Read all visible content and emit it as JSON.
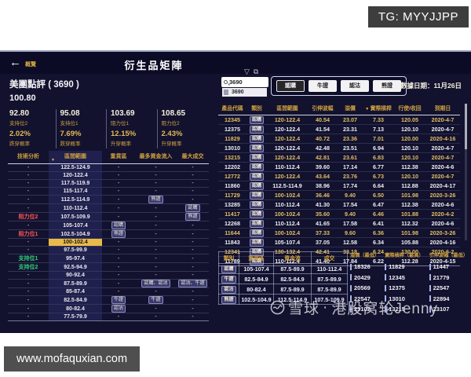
{
  "overlay": {
    "tg": "TG: MYYJJPP",
    "site": "www.mofaquxian.com",
    "watermark_brand": "雪球",
    "watermark_sep": "·",
    "watermark_name": "港股窝轮Jenny"
  },
  "header": {
    "back": "←",
    "overview": "概覽",
    "title": "衍生品矩陣",
    "funnel_icon": "▽",
    "snapshot_icon": "⧉"
  },
  "stock": {
    "name": "美團點評 ( 3690 )",
    "price": "100.80"
  },
  "levels": [
    {
      "value": "92.80",
      "label": "支持位2",
      "pct": "2.02%",
      "pct_label": "跌穿概率"
    },
    {
      "value": "95.08",
      "label": "支持位1",
      "pct": "7.69%",
      "pct_label": "跌穿概率"
    },
    {
      "value": "103.69",
      "label": "阻力位1",
      "pct": "12.15%",
      "pct_label": "升穿概率"
    },
    {
      "value": "108.65",
      "label": "阻力位2",
      "pct": "2.43%",
      "pct_label": "升穿概率"
    }
  ],
  "left_table": {
    "headers": [
      "技術分析",
      "區間範圍",
      "重貨區",
      "最多資金流入",
      "最大成交"
    ],
    "sort_icon": "▼",
    "rows": [
      {
        "tech": "-",
        "tech_type": "none",
        "range": "122.5-124.9",
        "heavy": [],
        "inflow": [],
        "volume": [],
        "highlight": false
      },
      {
        "tech": "-",
        "tech_type": "none",
        "range": "120-122.4",
        "heavy": [],
        "inflow": [],
        "volume": [],
        "highlight": false
      },
      {
        "tech": "-",
        "tech_type": "none",
        "range": "117.5-119.9",
        "heavy": [],
        "inflow": [],
        "volume": [],
        "highlight": false
      },
      {
        "tech": "-",
        "tech_type": "none",
        "range": "115-117.4",
        "heavy": [],
        "inflow": [],
        "volume": [],
        "highlight": false
      },
      {
        "tech": "-",
        "tech_type": "none",
        "range": "112.5-114.9",
        "heavy": [],
        "inflow": [
          "熊證"
        ],
        "volume": [],
        "highlight": false
      },
      {
        "tech": "-",
        "tech_type": "none",
        "range": "110-112.4",
        "heavy": [],
        "inflow": [],
        "volume": [
          "認購"
        ],
        "highlight": false
      },
      {
        "tech": "阻力位2",
        "tech_type": "resistance",
        "range": "107.5-109.9",
        "heavy": [],
        "inflow": [],
        "volume": [
          "熊證"
        ],
        "highlight": false
      },
      {
        "tech": "-",
        "tech_type": "none",
        "range": "105-107.4",
        "heavy": [
          "認購"
        ],
        "inflow": [],
        "volume": [],
        "highlight": false
      },
      {
        "tech": "阻力位1",
        "tech_type": "resistance",
        "range": "102.5-104.9",
        "heavy": [
          "熊證"
        ],
        "inflow": [],
        "volume": [],
        "highlight": false
      },
      {
        "tech": "-",
        "tech_type": "none",
        "range": "100-102.4",
        "heavy": [],
        "inflow": [],
        "volume": [],
        "highlight": true
      },
      {
        "tech": "-",
        "tech_type": "none",
        "range": "97.5-99.9",
        "heavy": [],
        "inflow": [],
        "volume": [],
        "highlight": false
      },
      {
        "tech": "支持位1",
        "tech_type": "support",
        "range": "95-97.4",
        "heavy": [],
        "inflow": [],
        "volume": [],
        "highlight": false
      },
      {
        "tech": "支持位2",
        "tech_type": "support",
        "range": "92.5-94.9",
        "heavy": [],
        "inflow": [],
        "volume": [],
        "highlight": false
      },
      {
        "tech": "-",
        "tech_type": "none",
        "range": "90-92.4",
        "heavy": [],
        "inflow": [],
        "volume": [],
        "highlight": false
      },
      {
        "tech": "-",
        "tech_type": "none",
        "range": "87.5-89.9",
        "heavy": [],
        "inflow": [
          "認購",
          "認沽"
        ],
        "volume": [
          "認沽",
          "牛證"
        ],
        "highlight": false
      },
      {
        "tech": "-",
        "tech_type": "none",
        "range": "85-87.4",
        "heavy": [],
        "inflow": [],
        "volume": [],
        "highlight": false
      },
      {
        "tech": "-",
        "tech_type": "none",
        "range": "82.5-84.9",
        "heavy": [
          "牛證"
        ],
        "inflow": [
          "牛證"
        ],
        "volume": [],
        "highlight": false
      },
      {
        "tech": "-",
        "tech_type": "none",
        "range": "80-82.4",
        "heavy": [
          "認沽"
        ],
        "inflow": [],
        "volume": [],
        "highlight": false
      },
      {
        "tech": "-",
        "tech_type": "none",
        "range": "77.5-79.9",
        "heavy": [],
        "inflow": [],
        "volume": [],
        "highlight": false
      }
    ]
  },
  "search": {
    "value": "3690",
    "suggestion": "3690"
  },
  "filters": [
    {
      "label": "認購",
      "active": true
    },
    {
      "label": "牛證",
      "active": false
    },
    {
      "label": "認沽",
      "active": false
    },
    {
      "label": "熊證",
      "active": false
    }
  ],
  "data_date": {
    "label": "數據日期：",
    "value": "11月26日"
  },
  "main_table": {
    "headers": [
      "產品代碼",
      "類別",
      "區間範圍",
      "引伸波幅",
      "溢價",
      "實際槓桿",
      "行使/收回",
      "到期日"
    ],
    "sort_icon": "▼",
    "rows": [
      {
        "code": "12345",
        "cat": "認購",
        "range": "120-122.4",
        "iv": "40.54",
        "premium": "23.07",
        "leverage": "7.33",
        "strike": "120.05",
        "expiry": "2020-4-7"
      },
      {
        "code": "12375",
        "cat": "認購",
        "range": "120-122.4",
        "iv": "41.54",
        "premium": "23.31",
        "leverage": "7.13",
        "strike": "120.10",
        "expiry": "2020-4-7"
      },
      {
        "code": "11829",
        "cat": "認購",
        "range": "120-122.4",
        "iv": "40.72",
        "premium": "23.36",
        "leverage": "7.01",
        "strike": "120.00",
        "expiry": "2020-4-16"
      },
      {
        "code": "13010",
        "cat": "認購",
        "range": "120-122.4",
        "iv": "42.48",
        "premium": "23.51",
        "leverage": "6.94",
        "strike": "120.10",
        "expiry": "2020-4-7"
      },
      {
        "code": "13215",
        "cat": "認購",
        "range": "120-122.4",
        "iv": "42.81",
        "premium": "23.61",
        "leverage": "6.83",
        "strike": "120.10",
        "expiry": "2020-4-7"
      },
      {
        "code": "12202",
        "cat": "認購",
        "range": "110-112.4",
        "iv": "39.60",
        "premium": "17.14",
        "leverage": "6.77",
        "strike": "112.38",
        "expiry": "2020-4-6"
      },
      {
        "code": "12772",
        "cat": "認購",
        "range": "120-122.4",
        "iv": "43.64",
        "premium": "23.76",
        "leverage": "6.73",
        "strike": "120.10",
        "expiry": "2020-4-7"
      },
      {
        "code": "11860",
        "cat": "認購",
        "range": "112.5-114.9",
        "iv": "38.96",
        "premium": "17.74",
        "leverage": "6.64",
        "strike": "112.88",
        "expiry": "2020-4-17"
      },
      {
        "code": "11729",
        "cat": "認購",
        "range": "100-102.4",
        "iv": "36.46",
        "premium": "9.40",
        "leverage": "6.50",
        "strike": "101.98",
        "expiry": "2020-3-26"
      },
      {
        "code": "13285",
        "cat": "認購",
        "range": "110-112.4",
        "iv": "41.30",
        "premium": "17.54",
        "leverage": "6.47",
        "strike": "112.38",
        "expiry": "2020-4-6"
      },
      {
        "code": "11417",
        "cat": "認購",
        "range": "100-102.4",
        "iv": "35.60",
        "premium": "9.40",
        "leverage": "6.46",
        "strike": "101.88",
        "expiry": "2020-4-2"
      },
      {
        "code": "12268",
        "cat": "認購",
        "range": "110-112.4",
        "iv": "41.65",
        "premium": "17.58",
        "leverage": "6.41",
        "strike": "112.32",
        "expiry": "2020-4-6"
      },
      {
        "code": "11644",
        "cat": "認購",
        "range": "100-102.4",
        "iv": "37.33",
        "premium": "9.60",
        "leverage": "6.36",
        "strike": "101.98",
        "expiry": "2020-3-26"
      },
      {
        "code": "11843",
        "cat": "認購",
        "range": "105-107.4",
        "iv": "37.05",
        "premium": "12.58",
        "leverage": "6.34",
        "strike": "105.88",
        "expiry": "2020-4-16"
      },
      {
        "code": "12341",
        "cat": "認購",
        "range": "130-132.4",
        "iv": "42.41",
        "premium": "33.18",
        "leverage": "6.24",
        "strike": "130.00",
        "expiry": "2020-6-2"
      },
      {
        "code": "11789",
        "cat": "認購",
        "range": "110-112.4",
        "iv": "41.40",
        "premium": "17.84",
        "leverage": "6.22",
        "strike": "112.28",
        "expiry": "2020-4-15"
      }
    ]
  },
  "summary_table": {
    "headers": [
      "類別",
      "重貨區",
      "資金流",
      "成交"
    ],
    "rows": [
      {
        "cat": "認購",
        "heavy": "105-107.4",
        "flow": "87.5-89.9",
        "volume": "110-112.4"
      },
      {
        "cat": "牛證",
        "heavy": "82.5-84.9",
        "flow": "82.5-84.9",
        "volume": "87.5-89.9"
      },
      {
        "cat": "認沽",
        "heavy": "80-82.4",
        "flow": "87.5-89.9",
        "volume": "87.5-89.9"
      },
      {
        "cat": "熊證",
        "heavy": "102.5-104.9",
        "flow": "112.5-114.9",
        "volume": "107.5-109.9"
      }
    ]
  },
  "rankings": [
    {
      "title": "溢價（最低）",
      "items": [
        "18326",
        "20429",
        "20569",
        "22547",
        "23107"
      ]
    },
    {
      "title": "實際槓桿（最高）",
      "items": [
        "11829",
        "12345",
        "12375",
        "13010",
        "13215"
      ]
    },
    {
      "title": "引伸波幅（最低）",
      "items": [
        "11447",
        "21779",
        "22547",
        "22894",
        "23107"
      ]
    }
  ],
  "colors": {
    "accent_yellow": "#cfa13f",
    "row_yellow": "#e2bd62",
    "highlight": "#e9b94a",
    "panel_bg": "#12122f",
    "resistance_red": "#ff5555",
    "support_green": "#35d07a"
  }
}
